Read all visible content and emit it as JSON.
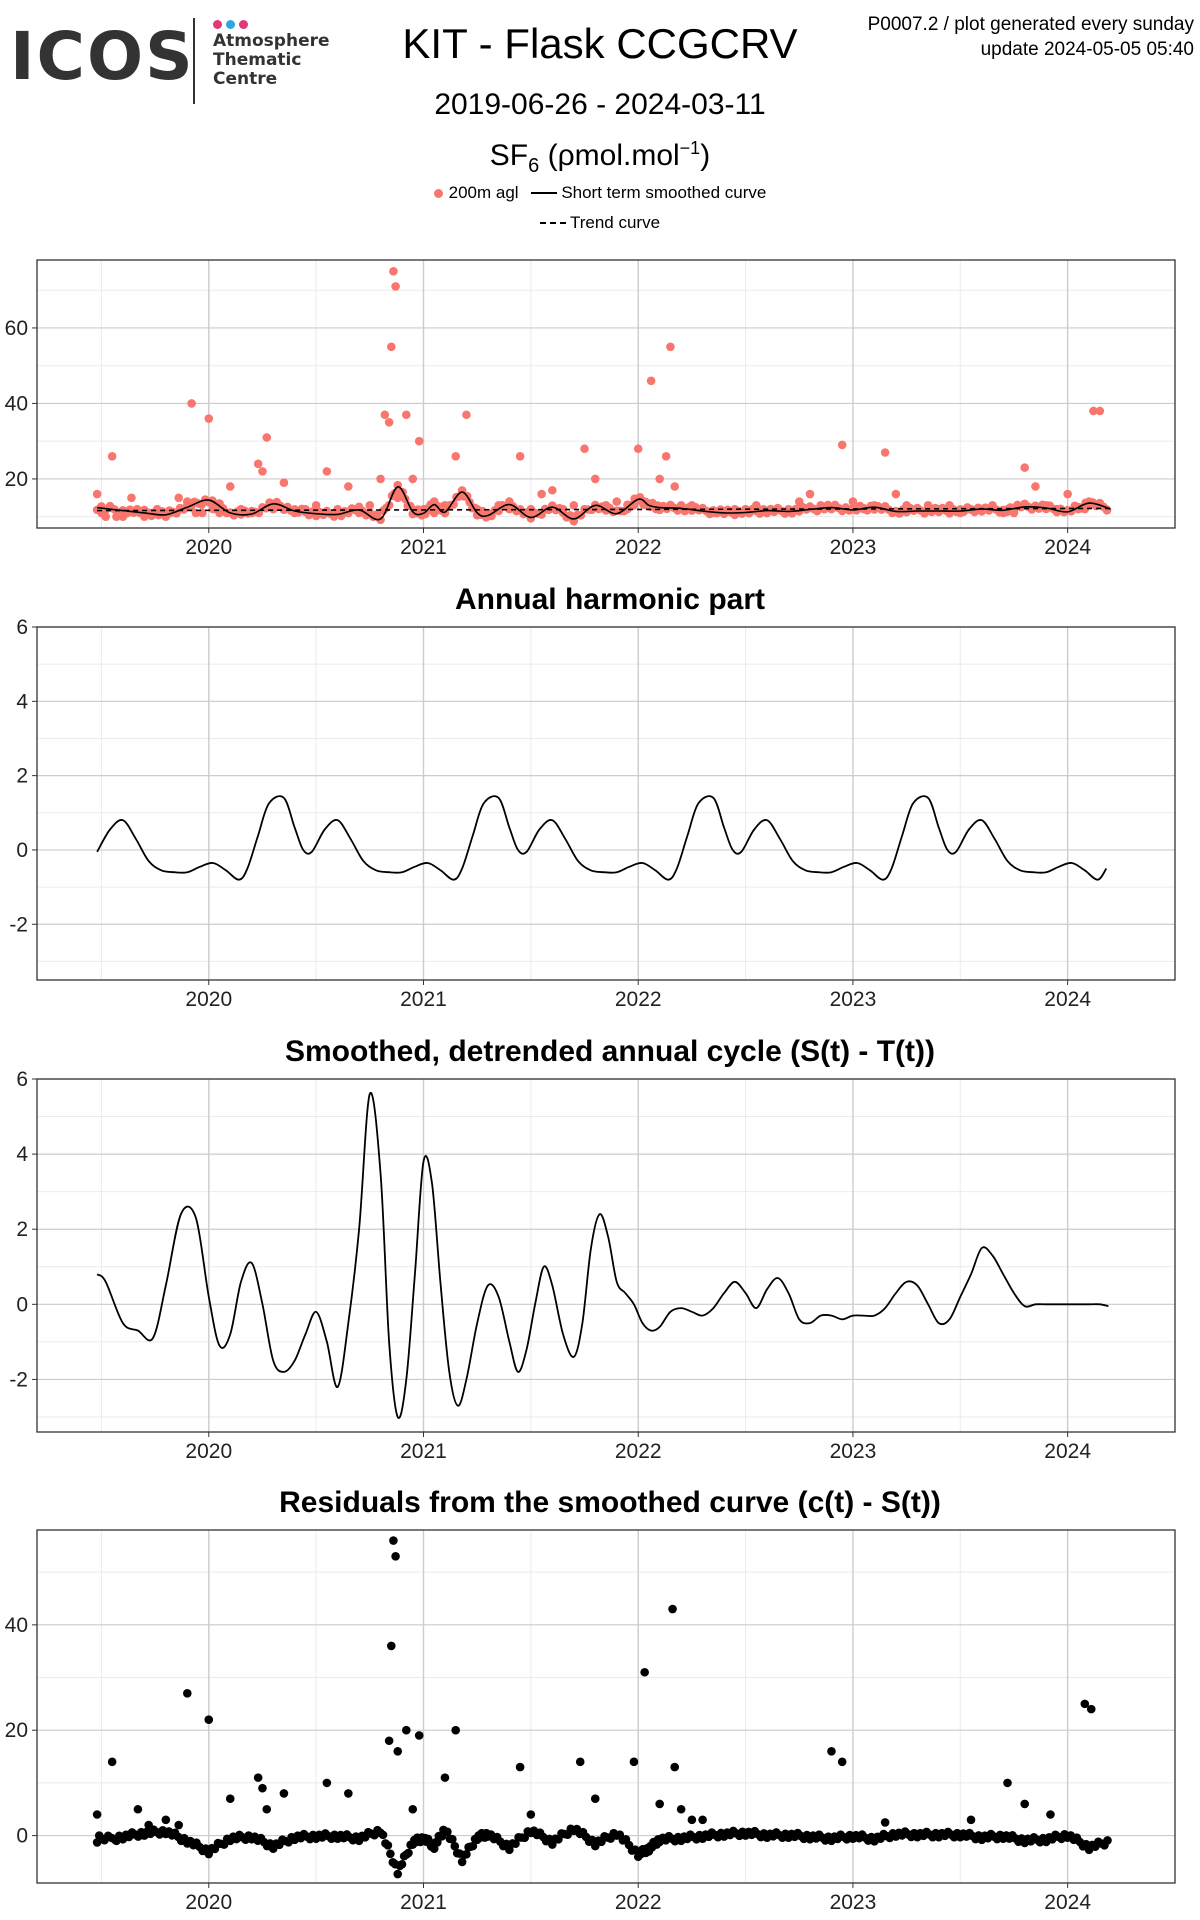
{
  "logo": {
    "word": "ICOS",
    "line1": "Atmosphere",
    "line2": "Thematic",
    "line3": "Centre",
    "dot_colors": [
      "#e0387a",
      "#2aa7e0",
      "#e0387a"
    ]
  },
  "header": {
    "meta_line1": "P0007.2 / plot generated every sunday",
    "meta_line2": "update  2024-05-05 05:40",
    "title": "KIT - Flask CCGCRV",
    "date_range": "2019-06-26 - 2024-03-11",
    "species": "SF",
    "species_sub": "6",
    "unit_prefix": " (ρmol.mol",
    "unit_sup": "−1",
    "unit_suffix": ")"
  },
  "legend": {
    "points_label": "200m agl",
    "smooth_label": "Short term smoothed curve",
    "trend_label": "Trend curve",
    "point_color": "#f8766d"
  },
  "colors": {
    "points": "#f8766d",
    "line": "#000000",
    "grid_major": "#cccccc",
    "grid_minor": "#ebebeb"
  },
  "chart_data": [
    {
      "id": "sf6",
      "type": "scatter",
      "title": "",
      "xlabel": "",
      "ylabel": "",
      "xlim": [
        2019.2,
        2024.5
      ],
      "ylim": [
        7,
        78
      ],
      "x_ticks": [
        2020,
        2021,
        2022,
        2023,
        2024
      ],
      "x_tick_labels": [
        "2020",
        "2021",
        "2022",
        "2023",
        "2024"
      ],
      "y_ticks": [
        20,
        40,
        60
      ],
      "y_tick_labels": [
        "20",
        "40",
        "60"
      ],
      "grid": true,
      "legend_position": "top",
      "series": [
        {
          "name": "200m agl",
          "kind": "points",
          "x": [
            2019.48,
            2019.49,
            2019.5,
            2019.52,
            2019.55,
            2019.57,
            2019.6,
            2019.62,
            2019.64,
            2019.68,
            2019.7,
            2019.73,
            2019.76,
            2019.8,
            2019.82,
            2019.86,
            2019.9,
            2019.92,
            2019.94,
            2019.97,
            2020.0,
            2020.02,
            2020.05,
            2020.1,
            2020.15,
            2020.2,
            2020.23,
            2020.25,
            2020.27,
            2020.3,
            2020.35,
            2020.4,
            2020.45,
            2020.5,
            2020.55,
            2020.6,
            2020.65,
            2020.7,
            2020.75,
            2020.8,
            2020.82,
            2020.84,
            2020.85,
            2020.86,
            2020.87,
            2020.88,
            2020.9,
            2020.92,
            2020.95,
            2020.98,
            2021.0,
            2021.05,
            2021.1,
            2021.15,
            2021.2,
            2021.25,
            2021.3,
            2021.35,
            2021.4,
            2021.45,
            2021.5,
            2021.55,
            2021.6,
            2021.65,
            2021.7,
            2021.75,
            2021.8,
            2021.85,
            2021.9,
            2021.95,
            2021.98,
            2022.0,
            2022.03,
            2022.06,
            2022.1,
            2022.13,
            2022.15,
            2022.17,
            2022.2,
            2022.25,
            2022.3,
            2022.35,
            2022.4,
            2022.45,
            2022.5,
            2022.55,
            2022.6,
            2022.65,
            2022.7,
            2022.75,
            2022.8,
            2022.85,
            2022.9,
            2022.95,
            2023.0,
            2023.05,
            2023.1,
            2023.15,
            2023.2,
            2023.25,
            2023.3,
            2023.35,
            2023.4,
            2023.45,
            2023.5,
            2023.55,
            2023.6,
            2023.65,
            2023.7,
            2023.72,
            2023.75,
            2023.8,
            2023.85,
            2023.9,
            2023.95,
            2024.0,
            2024.05,
            2024.08,
            2024.1,
            2024.12,
            2024.15,
            2024.18
          ],
          "y": [
            16,
            12,
            11,
            10,
            26,
            10,
            10,
            11,
            15,
            11,
            10,
            11,
            12,
            10,
            11,
            15,
            14,
            40,
            11,
            11,
            36,
            12,
            11,
            18,
            12,
            11,
            24,
            22,
            31,
            12,
            19,
            11,
            12,
            13,
            22,
            12,
            18,
            11,
            13,
            20,
            37,
            35,
            55,
            75,
            71,
            15,
            16,
            37,
            20,
            30,
            12,
            11,
            13,
            26,
            37,
            12,
            11,
            13,
            12,
            26,
            12,
            16,
            17,
            12,
            13,
            28,
            20,
            13,
            14,
            12,
            13,
            28,
            14,
            46,
            20,
            26,
            55,
            18,
            13,
            13,
            12,
            11,
            11,
            12,
            12,
            13,
            11,
            12,
            12,
            14,
            16,
            13,
            12,
            29,
            14,
            12,
            13,
            27,
            16,
            13,
            12,
            13,
            12,
            13,
            11,
            12,
            12,
            13,
            11,
            12,
            11,
            23,
            18,
            13,
            12,
            16,
            12,
            12,
            14,
            38,
            38,
            12
          ],
          "color": "#f8766d"
        },
        {
          "name": "Short term smoothed curve",
          "kind": "line",
          "x": [
            2019.48,
            2019.6,
            2019.7,
            2019.8,
            2019.9,
            2020.0,
            2020.1,
            2020.2,
            2020.3,
            2020.4,
            2020.5,
            2020.6,
            2020.7,
            2020.8,
            2020.88,
            2020.95,
            2021.0,
            2021.05,
            2021.1,
            2021.18,
            2021.25,
            2021.3,
            2021.4,
            2021.5,
            2021.6,
            2021.7,
            2021.8,
            2021.9,
            2022.0,
            2022.05,
            2022.1,
            2022.2,
            2022.3,
            2022.4,
            2022.5,
            2022.6,
            2022.7,
            2022.8,
            2022.9,
            2023.0,
            2023.1,
            2023.2,
            2023.3,
            2023.4,
            2023.5,
            2023.6,
            2023.7,
            2023.8,
            2023.9,
            2024.0,
            2024.1,
            2024.2
          ],
          "y": [
            12.4,
            11.6,
            11.0,
            10.5,
            12.5,
            14.4,
            11.0,
            10.7,
            13.4,
            11.5,
            10.8,
            10.6,
            11.8,
            9.4,
            17.9,
            11.3,
            10.9,
            13.2,
            11.2,
            16.5,
            11.0,
            10.3,
            13.2,
            9.8,
            12.5,
            9.4,
            13.0,
            10.8,
            14.6,
            13.0,
            12.4,
            12.2,
            11.5,
            11.0,
            11.1,
            11.6,
            11.4,
            11.9,
            12.4,
            11.8,
            12.5,
            11.4,
            11.5,
            11.5,
            11.5,
            12.0,
            11.7,
            12.6,
            12.3,
            11.3,
            13.6,
            12.0
          ]
        },
        {
          "name": "Trend curve",
          "kind": "dashed-line",
          "x": [
            2019.48,
            2024.2
          ],
          "y": [
            11.6,
            12.2
          ]
        }
      ]
    },
    {
      "id": "harmonic",
      "type": "line",
      "title": "Annual harmonic part",
      "xlabel": "",
      "ylabel": "",
      "xlim": [
        2019.2,
        2024.5
      ],
      "ylim": [
        -3.5,
        6
      ],
      "x_ticks": [
        2020,
        2021,
        2022,
        2023,
        2024
      ],
      "x_tick_labels": [
        "2020",
        "2021",
        "2022",
        "2023",
        "2024"
      ],
      "y_ticks": [
        -2,
        0,
        2,
        4,
        6
      ],
      "y_tick_labels": [
        "-2",
        "0",
        "2",
        "4",
        "6"
      ],
      "grid": true,
      "annual_pattern": {
        "t": [
          0.0,
          0.06,
          0.12,
          0.18,
          0.24,
          0.3,
          0.36,
          0.42,
          0.48,
          0.54,
          0.6,
          0.66,
          0.7,
          0.75,
          0.8,
          0.87,
          0.92,
          0.96,
          1.0
        ],
        "v": [
          -0.05,
          0.55,
          0.8,
          0.3,
          -0.3,
          -0.55,
          -0.6,
          -0.6,
          -0.45,
          -0.35,
          -0.55,
          -0.8,
          -0.5,
          0.4,
          1.25,
          1.4,
          0.6,
          0.0,
          -0.05
        ]
      },
      "start_x": 2019.48,
      "end_x": 2024.19,
      "series": [
        {
          "name": "",
          "values_note": ""
        }
      ]
    },
    {
      "id": "detrended",
      "type": "line",
      "title": "Smoothed, detrended annual cycle (S(t) - T(t))",
      "xlabel": "",
      "ylabel": "",
      "xlim": [
        2019.2,
        2024.5
      ],
      "ylim": [
        -3.4,
        6
      ],
      "x_ticks": [
        2020,
        2021,
        2022,
        2023,
        2024
      ],
      "x_tick_labels": [
        "2020",
        "2021",
        "2022",
        "2023",
        "2024"
      ],
      "y_ticks": [
        -2,
        0,
        2,
        4,
        6
      ],
      "y_tick_labels": [
        "-2",
        "0",
        "2",
        "4",
        "6"
      ],
      "grid": true,
      "series": [
        {
          "name": "",
          "x": [
            2019.48,
            2019.52,
            2019.6,
            2019.67,
            2019.74,
            2019.8,
            2019.87,
            2019.94,
            2020.0,
            2020.05,
            2020.1,
            2020.15,
            2020.2,
            2020.25,
            2020.3,
            2020.35,
            2020.4,
            2020.45,
            2020.5,
            2020.55,
            2020.6,
            2020.65,
            2020.7,
            2020.75,
            2020.8,
            2020.84,
            2020.88,
            2020.92,
            2020.96,
            2021.0,
            2021.04,
            2021.08,
            2021.12,
            2021.16,
            2021.2,
            2021.25,
            2021.3,
            2021.35,
            2021.4,
            2021.44,
            2021.48,
            2021.52,
            2021.56,
            2021.6,
            2021.65,
            2021.7,
            2021.74,
            2021.78,
            2021.82,
            2021.86,
            2021.9,
            2021.94,
            2021.98,
            2022.02,
            2022.06,
            2022.1,
            2022.15,
            2022.2,
            2022.25,
            2022.3,
            2022.35,
            2022.4,
            2022.45,
            2022.5,
            2022.55,
            2022.6,
            2022.65,
            2022.7,
            2022.75,
            2022.8,
            2022.85,
            2022.9,
            2022.95,
            2023.0,
            2023.05,
            2023.1,
            2023.15,
            2023.2,
            2023.25,
            2023.3,
            2023.35,
            2023.4,
            2023.45,
            2023.5,
            2023.55,
            2023.6,
            2023.65,
            2023.7,
            2023.75,
            2023.8,
            2023.85,
            2023.9,
            2023.95,
            2024.0,
            2024.05,
            2024.1,
            2024.15,
            2024.19
          ],
          "y": [
            0.8,
            0.6,
            -0.5,
            -0.7,
            -0.9,
            0.5,
            2.4,
            2.3,
            0.2,
            -1.1,
            -0.8,
            0.6,
            1.1,
            0.0,
            -1.5,
            -1.8,
            -1.5,
            -0.8,
            -0.2,
            -1.0,
            -2.2,
            -0.5,
            2.0,
            5.6,
            3.5,
            -1.0,
            -3.0,
            -2.0,
            0.8,
            3.8,
            3.2,
            0.5,
            -1.8,
            -2.7,
            -2.0,
            -0.5,
            0.5,
            0.2,
            -1.0,
            -1.8,
            -1.2,
            0.0,
            1.0,
            0.5,
            -0.8,
            -1.4,
            -0.5,
            1.5,
            2.4,
            1.8,
            0.6,
            0.3,
            0.0,
            -0.5,
            -0.7,
            -0.6,
            -0.2,
            -0.1,
            -0.2,
            -0.3,
            -0.1,
            0.3,
            0.6,
            0.3,
            -0.1,
            0.4,
            0.7,
            0.3,
            -0.4,
            -0.5,
            -0.3,
            -0.3,
            -0.4,
            -0.3,
            -0.3,
            -0.3,
            -0.1,
            0.3,
            0.6,
            0.5,
            0.0,
            -0.5,
            -0.4,
            0.2,
            0.8,
            1.5,
            1.3,
            0.8,
            0.3,
            -0.05,
            0.0,
            0.0,
            0.0,
            0.0,
            0.0,
            0.0,
            0.0,
            -0.05
          ]
        }
      ]
    },
    {
      "id": "residuals",
      "type": "scatter",
      "title": "Residuals from the smoothed curve (c(t) - S(t))",
      "xlabel": "",
      "ylabel": "",
      "xlim": [
        2019.2,
        2024.5
      ],
      "ylim": [
        -9,
        58
      ],
      "x_ticks": [
        2020,
        2021,
        2022,
        2023,
        2024
      ],
      "x_tick_labels": [
        "2020",
        "2021",
        "2022",
        "2023",
        "2024"
      ],
      "y_ticks": [
        0,
        20,
        40
      ],
      "y_tick_labels": [
        "0",
        "20",
        "40"
      ],
      "grid": true,
      "series": [
        {
          "name": "",
          "x": [
            2019.48,
            2019.49,
            2019.55,
            2019.57,
            2019.67,
            2019.72,
            2019.8,
            2019.86,
            2019.9,
            2020.0,
            2020.1,
            2020.23,
            2020.25,
            2020.27,
            2020.35,
            2020.55,
            2020.65,
            2020.84,
            2020.85,
            2020.86,
            2020.87,
            2020.88,
            2020.92,
            2020.95,
            2020.98,
            2021.1,
            2021.15,
            2021.45,
            2021.5,
            2021.73,
            2021.8,
            2021.98,
            2022.03,
            2022.1,
            2022.16,
            2022.17,
            2022.2,
            2022.25,
            2022.3,
            2022.9,
            2022.95,
            2023.15,
            2023.55,
            2023.72,
            2023.8,
            2023.92,
            2024.08,
            2024.11
          ],
          "y": [
            4,
            0,
            14,
            -1,
            5,
            2,
            3,
            2,
            27,
            22,
            7,
            11,
            9,
            5,
            8,
            10,
            8,
            18,
            36,
            56,
            53,
            16,
            20,
            5,
            19,
            11,
            20,
            13,
            4,
            14,
            7,
            14,
            31,
            6,
            43,
            13,
            5,
            3,
            3,
            16,
            14,
            2.5,
            3,
            10,
            6,
            4,
            25,
            24
          ],
          "band_x": [
            2019.48,
            2019.6,
            2019.7,
            2019.8,
            2019.9,
            2020.0,
            2020.1,
            2020.2,
            2020.3,
            2020.4,
            2020.5,
            2020.6,
            2020.7,
            2020.8,
            2020.88,
            2020.95,
            2021.0,
            2021.05,
            2021.1,
            2021.18,
            2021.25,
            2021.3,
            2021.4,
            2021.5,
            2021.6,
            2021.7,
            2021.8,
            2021.9,
            2022.0,
            2022.05,
            2022.1,
            2022.2,
            2022.3,
            2022.4,
            2022.5,
            2022.6,
            2022.7,
            2022.8,
            2022.9,
            2023.0,
            2023.1,
            2023.2,
            2023.3,
            2023.4,
            2023.5,
            2023.6,
            2023.7,
            2023.8,
            2023.9,
            2024.0,
            2024.1,
            2024.2
          ],
          "band_y": [
            -0.8,
            -0.2,
            0.5,
            0.8,
            -1.0,
            -3.0,
            -0.5,
            -0.2,
            -2.0,
            -0.3,
            -0.1,
            -0.1,
            -0.5,
            1.0,
            -6.8,
            -1.2,
            -0.5,
            -2.0,
            1.3,
            -4.5,
            -0.3,
            0.3,
            -2.2,
            1.0,
            -1.2,
            1.4,
            -1.5,
            0.5,
            -3.5,
            -2.5,
            -0.7,
            -0.5,
            -0.1,
            0.3,
            0.5,
            0.1,
            0.1,
            -0.2,
            -0.5,
            -0.1,
            -0.6,
            0.3,
            0.2,
            0.2,
            0.2,
            -0.3,
            -0.1,
            -0.9,
            -0.7,
            0.1,
            -2.2,
            -1.0
          ]
        }
      ]
    }
  ]
}
